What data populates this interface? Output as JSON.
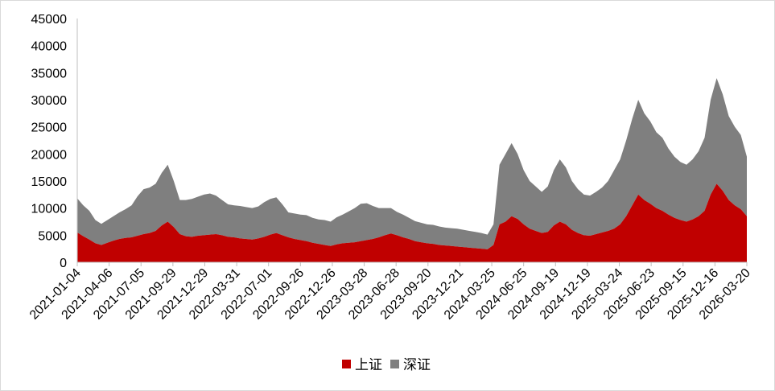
{
  "chart_data": {
    "type": "area",
    "stacked": true,
    "x_tick_labels": [
      "2021-01-04",
      "2021-04-06",
      "2021-07-05",
      "2021-09-29",
      "2021-12-29",
      "2022-03-31",
      "2022-07-01",
      "2022-09-26",
      "2022-12-26",
      "2023-03-28",
      "2023-06-28",
      "2023-09-20",
      "2023-12-21",
      "2024-03-25",
      "2024-06-25",
      "2024-09-19",
      "2024-12-19",
      "2025-03-24",
      "2025-06-23",
      "2025-09-15",
      "2025-12-16",
      "2026-03-20"
    ],
    "ylim": [
      0,
      45000
    ],
    "y_ticks": [
      0,
      5000,
      10000,
      15000,
      20000,
      25000,
      30000,
      35000,
      40000,
      45000
    ],
    "grid": false,
    "legend_position": "bottom",
    "series": [
      {
        "name": "上证",
        "color": "#c00000",
        "values": [
          5500,
          4800,
          4200,
          3500,
          3200,
          3600,
          4000,
          4300,
          4500,
          4600,
          4900,
          5200,
          5400,
          5800,
          6800,
          7500,
          6500,
          5200,
          4800,
          4700,
          4900,
          5000,
          5100,
          5200,
          5000,
          4700,
          4600,
          4400,
          4300,
          4200,
          4400,
          4700,
          5100,
          5400,
          5000,
          4600,
          4300,
          4100,
          3900,
          3600,
          3400,
          3200,
          3000,
          3300,
          3500,
          3600,
          3700,
          3900,
          4100,
          4300,
          4600,
          5000,
          5300,
          5000,
          4600,
          4300,
          3900,
          3700,
          3500,
          3400,
          3200,
          3100,
          3000,
          2900,
          2800,
          2700,
          2600,
          2500,
          2400,
          3200,
          7000,
          7500,
          8500,
          8000,
          7000,
          6200,
          5800,
          5400,
          5600,
          6800,
          7500,
          7000,
          6000,
          5400,
          5000,
          4900,
          5200,
          5500,
          5800,
          6200,
          7000,
          8500,
          10500,
          12500,
          11500,
          10800,
          10000,
          9500,
          8800,
          8200,
          7800,
          7500,
          7900,
          8500,
          9500,
          12500,
          14500,
          13200,
          11500,
          10500,
          9800,
          8500
        ]
      },
      {
        "name": "深证",
        "color": "#7f7f7f",
        "values": [
          6300,
          5700,
          5300,
          4300,
          3900,
          4200,
          4500,
          4900,
          5300,
          5900,
          7300,
          8300,
          8400,
          8700,
          9700,
          10500,
          8500,
          6300,
          6700,
          7000,
          7200,
          7500,
          7600,
          7100,
          6500,
          6000,
          5900,
          6000,
          5900,
          5800,
          5900,
          6400,
          6600,
          6600,
          5700,
          4600,
          4700,
          4700,
          4800,
          4600,
          4500,
          4600,
          4500,
          5000,
          5300,
          5800,
          6300,
          6900,
          6800,
          6100,
          5400,
          5000,
          4700,
          4300,
          4200,
          3900,
          3700,
          3600,
          3500,
          3500,
          3400,
          3300,
          3300,
          3300,
          3200,
          3100,
          3000,
          2900,
          2700,
          3800,
          11000,
          12500,
          13500,
          12000,
          10000,
          8800,
          8200,
          7600,
          8400,
          10200,
          11500,
          10500,
          9000,
          8100,
          7500,
          7400,
          7800,
          8300,
          9200,
          10800,
          12000,
          14000,
          16000,
          17500,
          16000,
          15200,
          14000,
          13500,
          12200,
          11300,
          10700,
          10500,
          11100,
          12000,
          13500,
          17500,
          19500,
          17800,
          15500,
          14500,
          13700,
          11000
        ]
      }
    ]
  }
}
